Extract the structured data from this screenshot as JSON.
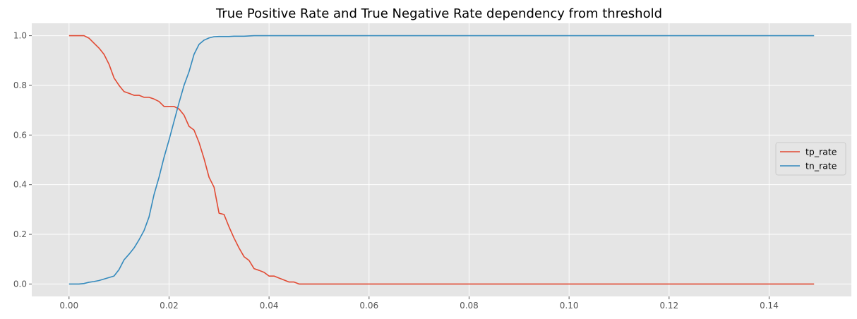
{
  "chart_data": {
    "type": "line",
    "title": "True Positive Rate and True Negative Rate dependency from threshold",
    "xlabel": "",
    "ylabel": "",
    "xlim": [
      -0.00745,
      0.15645
    ],
    "ylim": [
      -0.05,
      1.05
    ],
    "x_ticks": [
      0.0,
      0.02,
      0.04,
      0.06,
      0.08,
      0.1,
      0.12,
      0.14
    ],
    "x_tick_labels": [
      "0.00",
      "0.02",
      "0.04",
      "0.06",
      "0.08",
      "0.10",
      "0.12",
      "0.14"
    ],
    "y_ticks": [
      0.0,
      0.2,
      0.4,
      0.6,
      0.8,
      1.0
    ],
    "y_tick_labels": [
      "0.0",
      "0.2",
      "0.4",
      "0.6",
      "0.8",
      "1.0"
    ],
    "grid": true,
    "legend_position": "center-right",
    "x": [
      0.0,
      0.001,
      0.002,
      0.003,
      0.004,
      0.005,
      0.006,
      0.007,
      0.008,
      0.009,
      0.01,
      0.011,
      0.012,
      0.013,
      0.014,
      0.015,
      0.016,
      0.017,
      0.018,
      0.019,
      0.02,
      0.021,
      0.022,
      0.023,
      0.024,
      0.025,
      0.026,
      0.027,
      0.028,
      0.029,
      0.03,
      0.031,
      0.032,
      0.033,
      0.034,
      0.035,
      0.036,
      0.037,
      0.038,
      0.039,
      0.04,
      0.041,
      0.042,
      0.043,
      0.044,
      0.045,
      0.046,
      0.047,
      0.05,
      0.06,
      0.08,
      0.1,
      0.12,
      0.14,
      0.149
    ],
    "series": [
      {
        "name": "tp_rate",
        "color": "#E24A33",
        "values": [
          1.0,
          1.0,
          1.0,
          1.0,
          0.99,
          0.97,
          0.95,
          0.925,
          0.885,
          0.83,
          0.8,
          0.775,
          0.768,
          0.76,
          0.76,
          0.752,
          0.752,
          0.745,
          0.735,
          0.715,
          0.715,
          0.715,
          0.705,
          0.68,
          0.635,
          0.62,
          0.57,
          0.505,
          0.43,
          0.39,
          0.285,
          0.28,
          0.23,
          0.185,
          0.145,
          0.11,
          0.095,
          0.062,
          0.055,
          0.047,
          0.032,
          0.032,
          0.024,
          0.016,
          0.008,
          0.008,
          0.0,
          0.0,
          0.0,
          0.0,
          0.0,
          0.0,
          0.0,
          0.0,
          0.0
        ]
      },
      {
        "name": "tn_rate",
        "color": "#348ABD",
        "values": [
          0.0,
          0.0,
          0.0,
          0.002,
          0.007,
          0.01,
          0.014,
          0.02,
          0.026,
          0.032,
          0.058,
          0.097,
          0.12,
          0.145,
          0.178,
          0.215,
          0.27,
          0.36,
          0.43,
          0.51,
          0.58,
          0.655,
          0.73,
          0.8,
          0.855,
          0.925,
          0.965,
          0.982,
          0.991,
          0.996,
          0.997,
          0.997,
          0.997,
          0.998,
          0.998,
          0.998,
          0.999,
          1.0,
          1.0,
          1.0,
          1.0,
          1.0,
          1.0,
          1.0,
          1.0,
          1.0,
          1.0,
          1.0,
          1.0,
          1.0,
          1.0,
          1.0,
          1.0,
          1.0,
          1.0
        ]
      }
    ]
  }
}
